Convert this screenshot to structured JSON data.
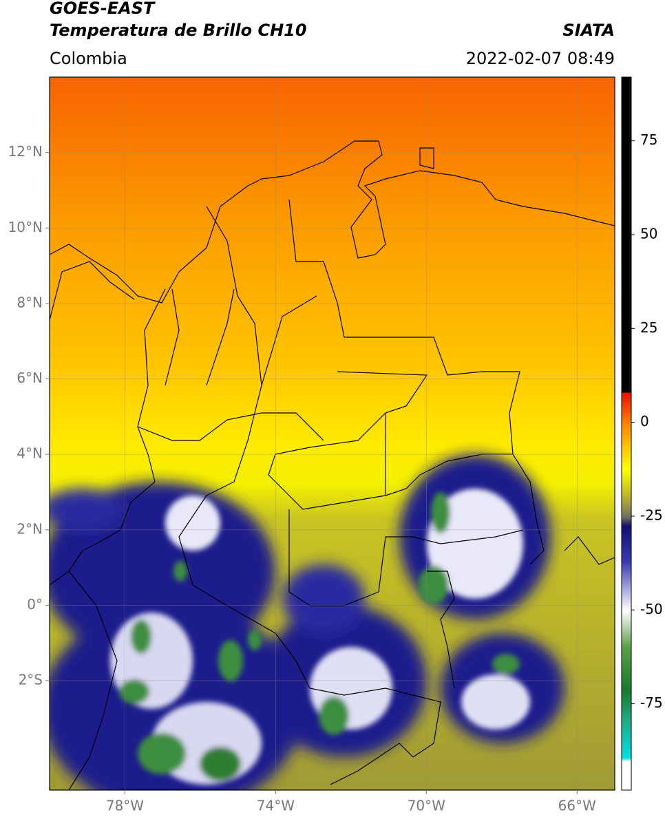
{
  "header": {
    "title": "GOES-EAST",
    "subtitle": "Temperatura de Brillo CH10",
    "source": "SIATA",
    "region": "Colombia",
    "datetime": "2022-02-07 08:49"
  },
  "map": {
    "xlim": [
      -80,
      -65
    ],
    "ylim": [
      -4.9,
      14
    ],
    "xticks": [
      {
        "value": -78,
        "label": "78°W"
      },
      {
        "value": -74,
        "label": "74°W"
      },
      {
        "value": -70,
        "label": "70°W"
      },
      {
        "value": -66,
        "label": "66°W"
      }
    ],
    "yticks": [
      {
        "value": 12,
        "label": "12°N"
      },
      {
        "value": 10,
        "label": "10°N"
      },
      {
        "value": 8,
        "label": "8°N"
      },
      {
        "value": 6,
        "label": "6°N"
      },
      {
        "value": 4,
        "label": "4°N"
      },
      {
        "value": 2,
        "label": "2°N"
      },
      {
        "value": 0,
        "label": "0°"
      },
      {
        "value": -2,
        "label": "2°S"
      }
    ],
    "grid": true
  },
  "colorbar": {
    "lim": [
      -98,
      92
    ],
    "ticks": [
      75,
      50,
      25,
      0,
      -25,
      -50,
      -75
    ]
  }
}
